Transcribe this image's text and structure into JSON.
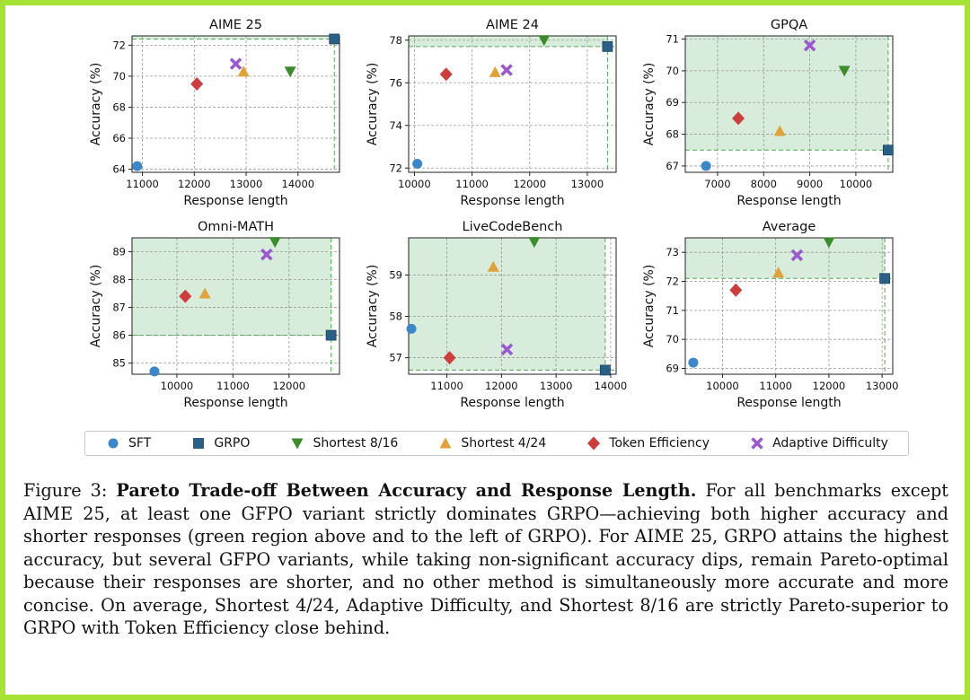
{
  "figure": {
    "caption_label": "Figure 3:",
    "caption_title": "Pareto Trade-off Between Accuracy and Response Length.",
    "caption_body": "For all benchmarks except AIME 25, at least one GFPO variant strictly dominates GRPO—achieving both higher accuracy and shorter responses (green region above and to the left of GRPO). For AIME 25, GRPO attains the highest accuracy, but several GFPO variants, while taking non-significant accuracy dips, remain Pareto-optimal because their responses are shorter, and no other method is simultaneously more accurate and more concise. On average, Shortest 4/24, Adaptive Difficulty, and Shortest 8/16 are strictly Pareto-superior to GRPO with Token Efficiency close behind."
  },
  "colors": {
    "frame": "#a6e234",
    "pareto_region": "#d7ecda",
    "pareto_line": "#4caf50"
  },
  "legend": [
    {
      "name": "SFT",
      "marker": "circle",
      "color": "#3d87c9"
    },
    {
      "name": "GRPO",
      "marker": "square",
      "color": "#2a5f86"
    },
    {
      "name": "Shortest 8/16",
      "marker": "triangle-down",
      "color": "#3e8b2e"
    },
    {
      "name": "Shortest 4/24",
      "marker": "triangle-up",
      "color": "#e0a23a"
    },
    {
      "name": "Token Efficiency",
      "marker": "diamond",
      "color": "#cc3d3d"
    },
    {
      "name": "Adaptive Difficulty",
      "marker": "x",
      "color": "#9b59d0"
    }
  ],
  "chart_data": [
    {
      "type": "scatter",
      "title": "AIME 25",
      "xlabel": "Response length",
      "ylabel": "Accuracy (%)",
      "xlim": [
        10800,
        14800
      ],
      "ylim": [
        63.8,
        72.6
      ],
      "xticks": [
        11000,
        12000,
        13000,
        14000
      ],
      "yticks": [
        64,
        66,
        68,
        70,
        72
      ],
      "grid": true,
      "pareto_region": true,
      "points": [
        {
          "series": "SFT",
          "x": 10900,
          "y": 64.2
        },
        {
          "series": "GRPO",
          "x": 14700,
          "y": 72.4
        },
        {
          "series": "Shortest 8/16",
          "x": 13850,
          "y": 70.3
        },
        {
          "series": "Shortest 4/24",
          "x": 12950,
          "y": 70.3
        },
        {
          "series": "Token Efficiency",
          "x": 12050,
          "y": 69.5
        },
        {
          "series": "Adaptive Difficulty",
          "x": 12800,
          "y": 70.8
        }
      ]
    },
    {
      "type": "scatter",
      "title": "AIME 24",
      "xlabel": "Response length",
      "ylabel": "Accuracy (%)",
      "xlim": [
        9900,
        13500
      ],
      "ylim": [
        71.8,
        78.2
      ],
      "xticks": [
        10000,
        11000,
        12000,
        13000
      ],
      "yticks": [
        72,
        74,
        76,
        78
      ],
      "grid": true,
      "pareto_region": true,
      "points": [
        {
          "series": "SFT",
          "x": 10050,
          "y": 72.2
        },
        {
          "series": "GRPO",
          "x": 13350,
          "y": 77.7
        },
        {
          "series": "Shortest 8/16",
          "x": 12250,
          "y": 78.0
        },
        {
          "series": "Shortest 4/24",
          "x": 11400,
          "y": 76.5
        },
        {
          "series": "Token Efficiency",
          "x": 10550,
          "y": 76.4
        },
        {
          "series": "Adaptive Difficulty",
          "x": 11600,
          "y": 76.6
        }
      ]
    },
    {
      "type": "scatter",
      "title": "GPQA",
      "xlabel": "Response length",
      "ylabel": "Accuracy (%)",
      "xlim": [
        6300,
        10800
      ],
      "ylim": [
        66.8,
        71.1
      ],
      "xticks": [
        7000,
        8000,
        9000,
        10000
      ],
      "yticks": [
        67,
        68,
        69,
        70,
        71
      ],
      "grid": true,
      "pareto_region": true,
      "points": [
        {
          "series": "SFT",
          "x": 6750,
          "y": 67.0
        },
        {
          "series": "GRPO",
          "x": 10700,
          "y": 67.5
        },
        {
          "series": "Shortest 8/16",
          "x": 9750,
          "y": 70.0
        },
        {
          "series": "Shortest 4/24",
          "x": 8350,
          "y": 68.1
        },
        {
          "series": "Token Efficiency",
          "x": 7450,
          "y": 68.5
        },
        {
          "series": "Adaptive Difficulty",
          "x": 9000,
          "y": 70.8
        }
      ]
    },
    {
      "type": "scatter",
      "title": "Omni-MATH",
      "xlabel": "Response length",
      "ylabel": "Accuracy (%)",
      "xlim": [
        9200,
        12900
      ],
      "ylim": [
        84.6,
        89.5
      ],
      "xticks": [
        10000,
        11000,
        12000
      ],
      "yticks": [
        85,
        86,
        87,
        88,
        89
      ],
      "grid": true,
      "pareto_region": true,
      "points": [
        {
          "series": "SFT",
          "x": 9600,
          "y": 84.7
        },
        {
          "series": "GRPO",
          "x": 12750,
          "y": 86.0
        },
        {
          "series": "Shortest 8/16",
          "x": 11750,
          "y": 89.35
        },
        {
          "series": "Shortest 4/24",
          "x": 10500,
          "y": 87.5
        },
        {
          "series": "Token Efficiency",
          "x": 10150,
          "y": 87.4
        },
        {
          "series": "Adaptive Difficulty",
          "x": 11600,
          "y": 88.9
        }
      ]
    },
    {
      "type": "scatter",
      "title": "LiveCodeBench",
      "xlabel": "Response length",
      "ylabel": "Accuracy (%)",
      "xlim": [
        10300,
        14100
      ],
      "ylim": [
        56.6,
        59.9
      ],
      "xticks": [
        11000,
        12000,
        13000,
        14000
      ],
      "yticks": [
        57,
        58,
        59
      ],
      "grid": true,
      "pareto_region": true,
      "points": [
        {
          "series": "SFT",
          "x": 10350,
          "y": 57.7
        },
        {
          "series": "GRPO",
          "x": 13900,
          "y": 56.7
        },
        {
          "series": "Shortest 8/16",
          "x": 12600,
          "y": 59.8
        },
        {
          "series": "Shortest 4/24",
          "x": 11850,
          "y": 59.2
        },
        {
          "series": "Token Efficiency",
          "x": 11050,
          "y": 57.0
        },
        {
          "series": "Adaptive Difficulty",
          "x": 12100,
          "y": 57.2
        }
      ]
    },
    {
      "type": "scatter",
      "title": "Average",
      "xlabel": "Response length",
      "ylabel": "Accuracy (%)",
      "xlim": [
        9300,
        13200
      ],
      "ylim": [
        68.8,
        73.5
      ],
      "xticks": [
        10000,
        11000,
        12000,
        13000
      ],
      "yticks": [
        69,
        70,
        71,
        72,
        73
      ],
      "grid": true,
      "pareto_region": true,
      "points": [
        {
          "series": "SFT",
          "x": 9450,
          "y": 69.2
        },
        {
          "series": "GRPO",
          "x": 13050,
          "y": 72.1
        },
        {
          "series": "Shortest 8/16",
          "x": 12000,
          "y": 73.35
        },
        {
          "series": "Shortest 4/24",
          "x": 11050,
          "y": 72.3
        },
        {
          "series": "Token Efficiency",
          "x": 10250,
          "y": 71.7
        },
        {
          "series": "Adaptive Difficulty",
          "x": 11400,
          "y": 72.9
        }
      ]
    }
  ]
}
